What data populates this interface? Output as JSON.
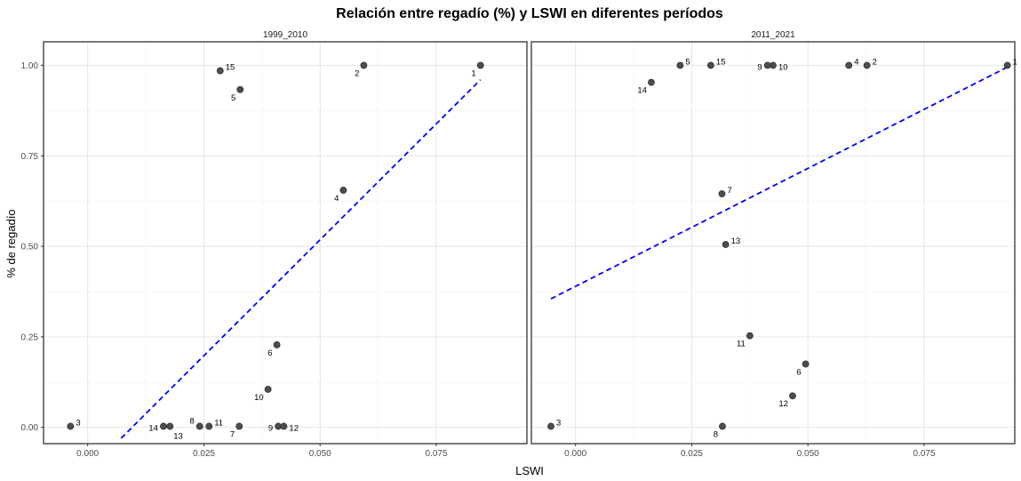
{
  "chart_data": {
    "type": "scatter",
    "title": "Relación entre regadío (%) y LSWI en diferentes períodos",
    "xlabel": "LSWI",
    "ylabel": "% de regadío",
    "xlim": [
      -0.0095,
      0.0945
    ],
    "ylim": [
      -0.045,
      1.065
    ],
    "xticks": [
      0.0,
      0.025,
      0.05,
      0.075
    ],
    "xtick_labels": [
      "0.000",
      "0.025",
      "0.050",
      "0.075"
    ],
    "yticks": [
      0.0,
      0.25,
      0.5,
      0.75,
      1.0
    ],
    "ytick_labels": [
      "0.00",
      "0.25",
      "0.50",
      "0.75",
      "1.00"
    ],
    "grid": true,
    "point_color": "#4d4d4d",
    "trend_color": "#0000ff",
    "panels": [
      {
        "name": "1999_2010",
        "points": [
          {
            "label": "1",
            "x": 0.0845,
            "y": 1.0,
            "pos": "bl"
          },
          {
            "label": "2",
            "x": 0.0594,
            "y": 1.0,
            "pos": "bl"
          },
          {
            "label": "15",
            "x": 0.0285,
            "y": 0.985,
            "pos": "tr"
          },
          {
            "label": "5",
            "x": 0.0328,
            "y": 0.933,
            "pos": "bl"
          },
          {
            "label": "4",
            "x": 0.055,
            "y": 0.655,
            "pos": "bl"
          },
          {
            "label": "6",
            "x": 0.0407,
            "y": 0.228,
            "pos": "bl"
          },
          {
            "label": "10",
            "x": 0.0388,
            "y": 0.105,
            "pos": "bl"
          },
          {
            "label": "3",
            "x": -0.0037,
            "y": 0.003,
            "pos": "tr"
          },
          {
            "label": "14",
            "x": 0.0163,
            "y": 0.003,
            "pos": "l"
          },
          {
            "label": "13",
            "x": 0.0177,
            "y": 0.003,
            "pos": "br"
          },
          {
            "label": "8",
            "x": 0.0241,
            "y": 0.003,
            "pos": "tl"
          },
          {
            "label": "11",
            "x": 0.0261,
            "y": 0.003,
            "pos": "tr"
          },
          {
            "label": "7",
            "x": 0.0326,
            "y": 0.003,
            "pos": "bl"
          },
          {
            "label": "9",
            "x": 0.041,
            "y": 0.003,
            "pos": "l"
          },
          {
            "label": "12",
            "x": 0.0422,
            "y": 0.003,
            "pos": "r"
          }
        ],
        "trend": {
          "x": [
            0.0072,
            0.0845
          ],
          "y": [
            -0.03,
            0.96
          ]
        }
      },
      {
        "name": "2011_2021",
        "points": [
          {
            "label": "1",
            "x": 0.0929,
            "y": 1.0,
            "pos": "tr"
          },
          {
            "label": "2",
            "x": 0.0627,
            "y": 1.0,
            "pos": "tr"
          },
          {
            "label": "4",
            "x": 0.0588,
            "y": 1.0,
            "pos": "tr"
          },
          {
            "label": "5",
            "x": 0.0225,
            "y": 1.0,
            "pos": "tr"
          },
          {
            "label": "15",
            "x": 0.0291,
            "y": 1.0,
            "pos": "tr"
          },
          {
            "label": "9",
            "x": 0.0413,
            "y": 1.0,
            "pos": "l"
          },
          {
            "label": "10",
            "x": 0.0425,
            "y": 1.0,
            "pos": "r"
          },
          {
            "label": "14",
            "x": 0.0163,
            "y": 0.953,
            "pos": "bl"
          },
          {
            "label": "7",
            "x": 0.0315,
            "y": 0.645,
            "pos": "tr"
          },
          {
            "label": "13",
            "x": 0.0323,
            "y": 0.505,
            "pos": "tr"
          },
          {
            "label": "11",
            "x": 0.0375,
            "y": 0.253,
            "pos": "bl"
          },
          {
            "label": "6",
            "x": 0.0495,
            "y": 0.175,
            "pos": "bl"
          },
          {
            "label": "12",
            "x": 0.0467,
            "y": 0.087,
            "pos": "bl"
          },
          {
            "label": "3",
            "x": -0.0053,
            "y": 0.003,
            "pos": "tr"
          },
          {
            "label": "8",
            "x": 0.0316,
            "y": 0.003,
            "pos": "bl"
          }
        ],
        "trend": {
          "x": [
            -0.0053,
            0.0929
          ],
          "y": [
            0.355,
            0.995
          ]
        }
      }
    ]
  }
}
